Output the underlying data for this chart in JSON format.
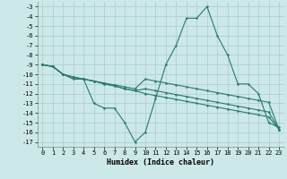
{
  "title": "",
  "xlabel": "Humidex (Indice chaleur)",
  "bg_color": "#cce8e8",
  "grid_color": "#aacccc",
  "line_color": "#2a7a6a",
  "x_data": [
    0,
    1,
    2,
    3,
    4,
    5,
    6,
    7,
    8,
    9,
    10,
    11,
    12,
    13,
    14,
    15,
    16,
    17,
    18,
    19,
    20,
    21,
    22,
    23
  ],
  "line1": [
    -9.0,
    -9.2,
    -10.0,
    -10.5,
    -10.5,
    -13.0,
    -13.5,
    -13.5,
    -15.0,
    -17.0,
    -16.0,
    -12.5,
    -9.0,
    -7.0,
    -4.2,
    -4.2,
    -3.0,
    -6.0,
    -8.0,
    -11.0,
    -11.0,
    -12.0,
    -15.0,
    -15.5
  ],
  "line2": [
    -9.0,
    -9.2,
    -10.0,
    -10.3,
    -10.5,
    -10.7,
    -10.9,
    -11.1,
    -11.3,
    -11.5,
    -10.5,
    -10.7,
    -10.9,
    -11.1,
    -11.3,
    -11.5,
    -11.7,
    -11.9,
    -12.1,
    -12.3,
    -12.5,
    -12.7,
    -12.9,
    -15.7
  ],
  "line3": [
    -9.0,
    -9.2,
    -10.0,
    -10.3,
    -10.5,
    -10.7,
    -11.0,
    -11.2,
    -11.5,
    -11.7,
    -11.5,
    -11.7,
    -11.9,
    -12.1,
    -12.3,
    -12.5,
    -12.7,
    -12.9,
    -13.1,
    -13.3,
    -13.5,
    -13.7,
    -13.9,
    -15.7
  ],
  "line4": [
    -9.0,
    -9.2,
    -10.0,
    -10.3,
    -10.5,
    -10.7,
    -11.0,
    -11.2,
    -11.5,
    -11.7,
    -12.0,
    -12.2,
    -12.4,
    -12.6,
    -12.8,
    -13.0,
    -13.2,
    -13.4,
    -13.6,
    -13.8,
    -14.0,
    -14.2,
    -14.4,
    -15.7
  ],
  "xlim": [
    -0.5,
    23.5
  ],
  "ylim": [
    -17.5,
    -2.5
  ],
  "yticks": [
    -3,
    -4,
    -5,
    -6,
    -7,
    -8,
    -9,
    -10,
    -11,
    -12,
    -13,
    -14,
    -15,
    -16,
    -17
  ],
  "xticks": [
    0,
    1,
    2,
    3,
    4,
    5,
    6,
    7,
    8,
    9,
    10,
    11,
    12,
    13,
    14,
    15,
    16,
    17,
    18,
    19,
    20,
    21,
    22,
    23
  ],
  "xlabel_fontsize": 6.0,
  "tick_fontsize": 5.0,
  "marker_size": 1.8,
  "line_width": 0.8
}
